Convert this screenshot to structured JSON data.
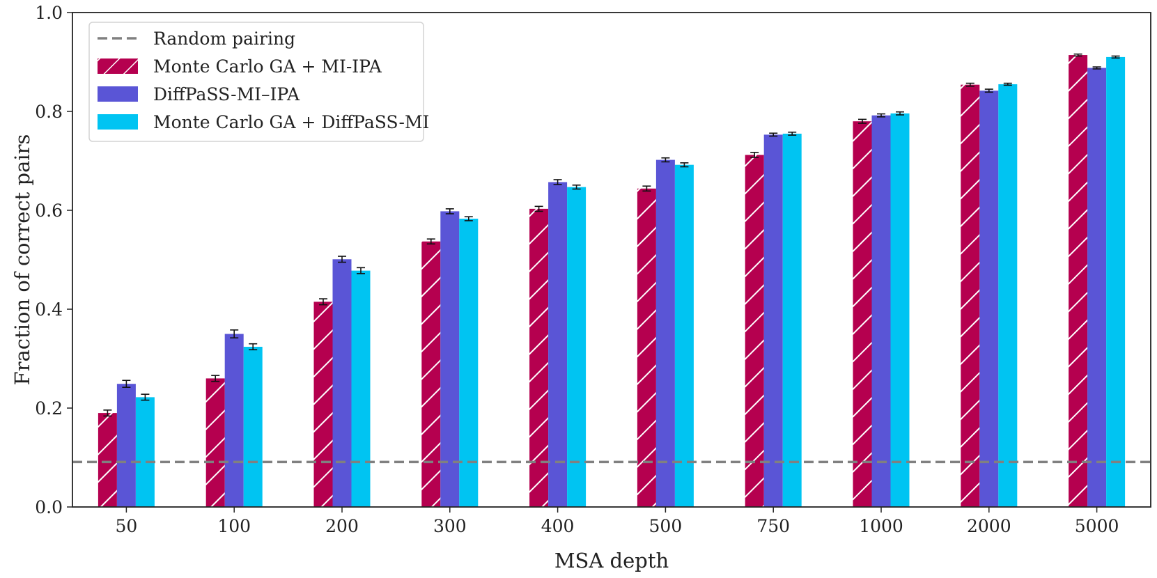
{
  "chart_data": {
    "type": "bar",
    "title": "",
    "xlabel": "MSA depth",
    "ylabel": "Fraction of correct pairs",
    "ylim": [
      0.0,
      1.0
    ],
    "yticks": [
      "0.0",
      "0.2",
      "0.4",
      "0.6",
      "0.8",
      "1.0"
    ],
    "categories": [
      "50",
      "100",
      "200",
      "300",
      "400",
      "500",
      "750",
      "1000",
      "2000",
      "5000"
    ],
    "series": [
      {
        "name": "Monte Carlo GA + MI-IPA",
        "color": "#b5004f",
        "pattern": "hatch",
        "values": [
          0.19,
          0.26,
          0.415,
          0.537,
          0.603,
          0.644,
          0.712,
          0.78,
          0.854,
          0.914
        ],
        "errors": [
          0.006,
          0.006,
          0.006,
          0.005,
          0.005,
          0.005,
          0.005,
          0.004,
          0.003,
          0.002
        ]
      },
      {
        "name": "DiffPaSS-MI–IPA",
        "color": "#5a55d6",
        "pattern": "solid",
        "values": [
          0.249,
          0.35,
          0.501,
          0.598,
          0.657,
          0.702,
          0.753,
          0.792,
          0.842,
          0.888
        ],
        "errors": [
          0.007,
          0.008,
          0.006,
          0.005,
          0.005,
          0.004,
          0.003,
          0.003,
          0.003,
          0.002
        ]
      },
      {
        "name": "Monte Carlo GA + DiffPaSS-MI",
        "color": "#00c4f2",
        "pattern": "solid",
        "values": [
          0.222,
          0.324,
          0.478,
          0.583,
          0.647,
          0.692,
          0.755,
          0.796,
          0.855,
          0.91
        ],
        "errors": [
          0.006,
          0.006,
          0.006,
          0.004,
          0.004,
          0.004,
          0.003,
          0.003,
          0.002,
          0.002
        ]
      }
    ],
    "reference_line": {
      "name": "Random pairing",
      "value": 0.091,
      "color": "#808080",
      "style": "dashed"
    },
    "legend_position": "top-left",
    "grid": false
  }
}
